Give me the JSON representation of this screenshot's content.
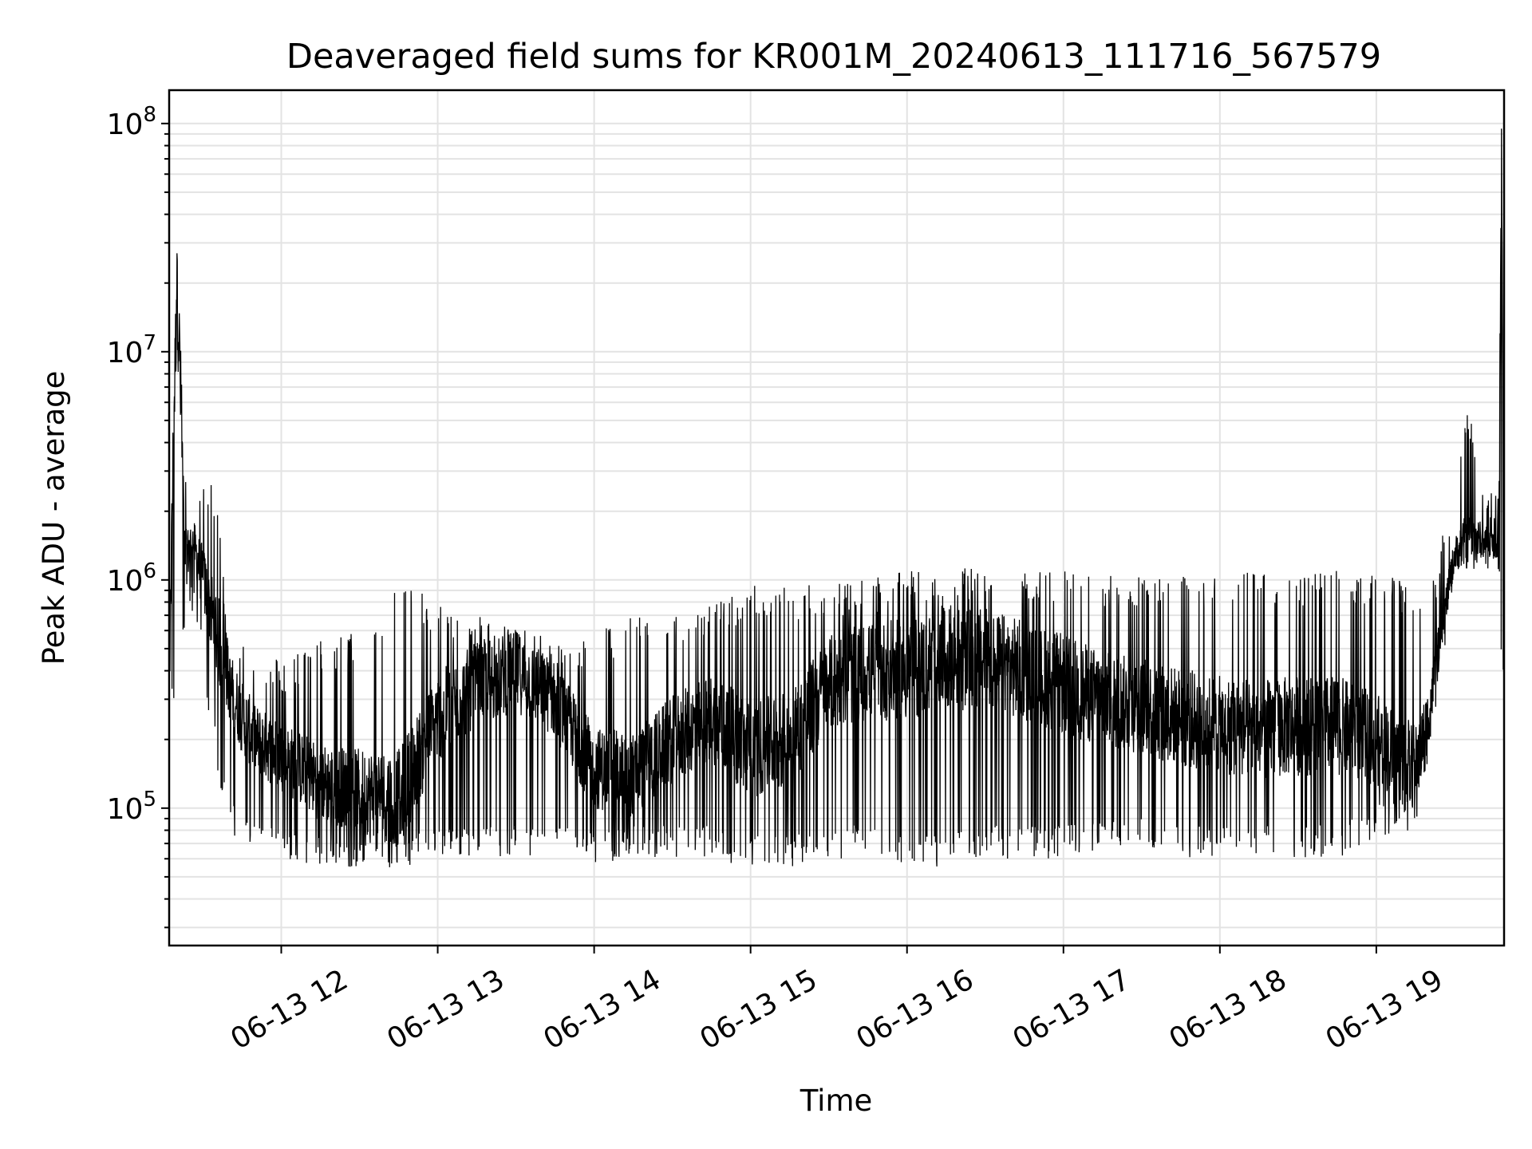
{
  "chart_data": {
    "type": "line",
    "title": "Deaveraged field sums for KR001M_20240613_111716_567579",
    "xlabel": "Time",
    "ylabel": "Peak ADU - average",
    "yscale": "log",
    "grid": true,
    "xlim": [
      "2024-06-13 11:17",
      "2024-06-13 19:49"
    ],
    "ylim": [
      25000,
      140000000
    ],
    "x_tick_labels": [
      "06-13 12",
      "06-13 13",
      "06-13 14",
      "06-13 15",
      "06-13 16",
      "06-13 17",
      "06-13 18",
      "06-13 19"
    ],
    "x_tick_times": [
      "2024-06-13 12:00",
      "2024-06-13 13:00",
      "2024-06-13 14:00",
      "2024-06-13 15:00",
      "2024-06-13 16:00",
      "2024-06-13 17:00",
      "2024-06-13 18:00",
      "2024-06-13 19:00"
    ],
    "y_ticks": [
      {
        "value": 100000,
        "base": "10",
        "exp": "5"
      },
      {
        "value": 1000000,
        "base": "10",
        "exp": "6"
      },
      {
        "value": 10000000,
        "base": "10",
        "exp": "7"
      },
      {
        "value": 100000000,
        "base": "10",
        "exp": "8"
      }
    ],
    "line_color": "#000000",
    "series": [
      {
        "x": [
          "2024-06-13 11:17",
          "2024-06-13 11:20",
          "2024-06-13 11:23",
          "2024-06-13 11:26",
          "2024-06-13 11:30",
          "2024-06-13 11:35",
          "2024-06-13 11:40",
          "2024-06-13 11:45",
          "2024-06-13 11:50",
          "2024-06-13 12:00",
          "2024-06-13 12:15",
          "2024-06-13 12:30",
          "2024-06-13 12:45",
          "2024-06-13 13:00",
          "2024-06-13 13:15",
          "2024-06-13 13:30",
          "2024-06-13 13:45",
          "2024-06-13 14:00",
          "2024-06-13 14:15",
          "2024-06-13 14:30",
          "2024-06-13 14:45",
          "2024-06-13 15:00",
          "2024-06-13 15:15",
          "2024-06-13 15:30",
          "2024-06-13 15:45",
          "2024-06-13 16:00",
          "2024-06-13 16:15",
          "2024-06-13 16:30",
          "2024-06-13 16:45",
          "2024-06-13 17:00",
          "2024-06-13 17:15",
          "2024-06-13 17:30",
          "2024-06-13 17:45",
          "2024-06-13 18:00",
          "2024-06-13 18:15",
          "2024-06-13 18:30",
          "2024-06-13 18:45",
          "2024-06-13 19:00",
          "2024-06-13 19:15",
          "2024-06-13 19:20",
          "2024-06-13 19:25",
          "2024-06-13 19:30",
          "2024-06-13 19:35",
          "2024-06-13 19:40",
          "2024-06-13 19:45",
          "2024-06-13 19:47",
          "2024-06-13 19:48",
          "2024-06-13 19:49"
        ],
        "values": [
          400000,
          27000000,
          1200000,
          1500000,
          1000000,
          600000,
          350000,
          250000,
          200000,
          170000,
          130000,
          120000,
          110000,
          250000,
          350000,
          400000,
          300000,
          150000,
          140000,
          200000,
          250000,
          180000,
          200000,
          350000,
          400000,
          400000,
          450000,
          450000,
          400000,
          350000,
          300000,
          280000,
          250000,
          230000,
          220000,
          230000,
          230000,
          200000,
          150000,
          250000,
          600000,
          1300000,
          1500000,
          1500000,
          1400000,
          1500000,
          95000000,
          380000
        ],
        "min_values": [
          300000,
          250000,
          600000,
          700000,
          400000,
          150000,
          80000,
          70000,
          65000,
          60000,
          55000,
          55000,
          55000,
          60000,
          60000,
          60000,
          60000,
          55000,
          60000,
          60000,
          60000,
          55000,
          55000,
          60000,
          60000,
          55000,
          55000,
          60000,
          60000,
          60000,
          65000,
          65000,
          60000,
          60000,
          60000,
          60000,
          60000,
          75000,
          80000,
          150000,
          400000,
          1000000,
          1100000,
          1100000,
          1000000,
          1000000,
          380000,
          380000
        ],
        "max_values": [
          1000000,
          27000000,
          3500000,
          2500000,
          2800000,
          2500000,
          600000,
          550000,
          500000,
          450000,
          550000,
          600000,
          1000000,
          800000,
          700000,
          650000,
          550000,
          600000,
          700000,
          750000,
          800000,
          950000,
          950000,
          1000000,
          1000000,
          1100000,
          1100000,
          1150000,
          1100000,
          1100000,
          1050000,
          1050000,
          1100000,
          1050000,
          1100000,
          1100000,
          1100000,
          1050000,
          1000000,
          800000,
          1500000,
          2500000,
          6000000,
          3200000,
          2500000,
          2500000,
          95000000,
          380000
        ]
      }
    ]
  }
}
